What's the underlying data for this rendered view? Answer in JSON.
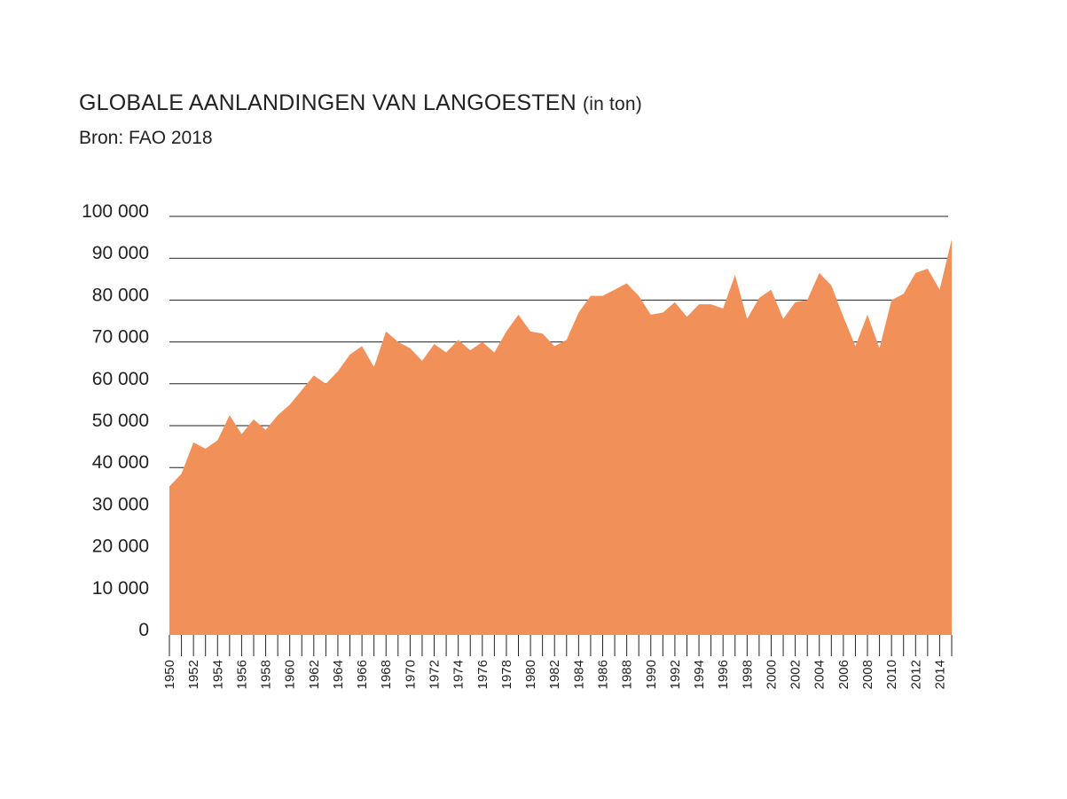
{
  "title": "GLOBALE AANLANDINGEN VAN LANGOESTEN",
  "title_unit": "(in ton)",
  "subtitle": "Bron: FAO 2018",
  "chart_data": {
    "type": "area",
    "color": "#f2905a",
    "ylim": [
      0,
      100000
    ],
    "yticks": [
      {
        "value": 100000,
        "label": "100 000"
      },
      {
        "value": 90000,
        "label": "90 000"
      },
      {
        "value": 80000,
        "label": "80 000"
      },
      {
        "value": 70000,
        "label": "70 000"
      },
      {
        "value": 60000,
        "label": "60 000"
      },
      {
        "value": 50000,
        "label": "50 000"
      },
      {
        "value": 40000,
        "label": "40 000"
      },
      {
        "value": 30000,
        "label": "30 000"
      },
      {
        "value": 20000,
        "label": "20 000"
      },
      {
        "value": 10000,
        "label": "10 000"
      },
      {
        "value": 0,
        "label": "0"
      }
    ],
    "xlabels": [
      "1950",
      "1952",
      "1954",
      "1956",
      "1958",
      "1960",
      "1962",
      "1964",
      "1966",
      "1968",
      "1970",
      "1972",
      "1974",
      "1976",
      "1978",
      "1980",
      "1982",
      "1984",
      "1986",
      "1988",
      "1990",
      "1992",
      "1994",
      "1996",
      "1998",
      "2000",
      "2002",
      "2004",
      "2006",
      "2008",
      "2010",
      "2012",
      "2014"
    ],
    "x": [
      1950,
      1951,
      1952,
      1953,
      1954,
      1955,
      1956,
      1957,
      1958,
      1959,
      1960,
      1961,
      1962,
      1963,
      1964,
      1965,
      1966,
      1967,
      1968,
      1969,
      1970,
      1971,
      1972,
      1973,
      1974,
      1975,
      1976,
      1977,
      1978,
      1979,
      1980,
      1981,
      1982,
      1983,
      1984,
      1985,
      1986,
      1987,
      1988,
      1989,
      1990,
      1991,
      1992,
      1993,
      1994,
      1995,
      1996,
      1997,
      1998,
      1999,
      2000,
      2001,
      2002,
      2003,
      2004,
      2005,
      2006,
      2007,
      2008,
      2009,
      2010,
      2011,
      2012,
      2013,
      2014,
      2015
    ],
    "values": [
      35500,
      38500,
      46000,
      44500,
      46500,
      52500,
      48000,
      51500,
      49000,
      52500,
      55000,
      58500,
      62000,
      60000,
      63000,
      67000,
      69000,
      64000,
      72500,
      70000,
      68500,
      65500,
      69500,
      67500,
      70500,
      68000,
      70000,
      67500,
      72500,
      76500,
      72500,
      72000,
      69000,
      70500,
      77000,
      81000,
      81000,
      82500,
      84000,
      81000,
      76500,
      77000,
      79500,
      76000,
      79000,
      79000,
      78000,
      86000,
      75500,
      80500,
      82500,
      75500,
      79500,
      80000,
      86500,
      83500,
      76000,
      69000,
      76500,
      68500,
      80000,
      81500,
      86500,
      87500,
      82500,
      94500
    ]
  }
}
